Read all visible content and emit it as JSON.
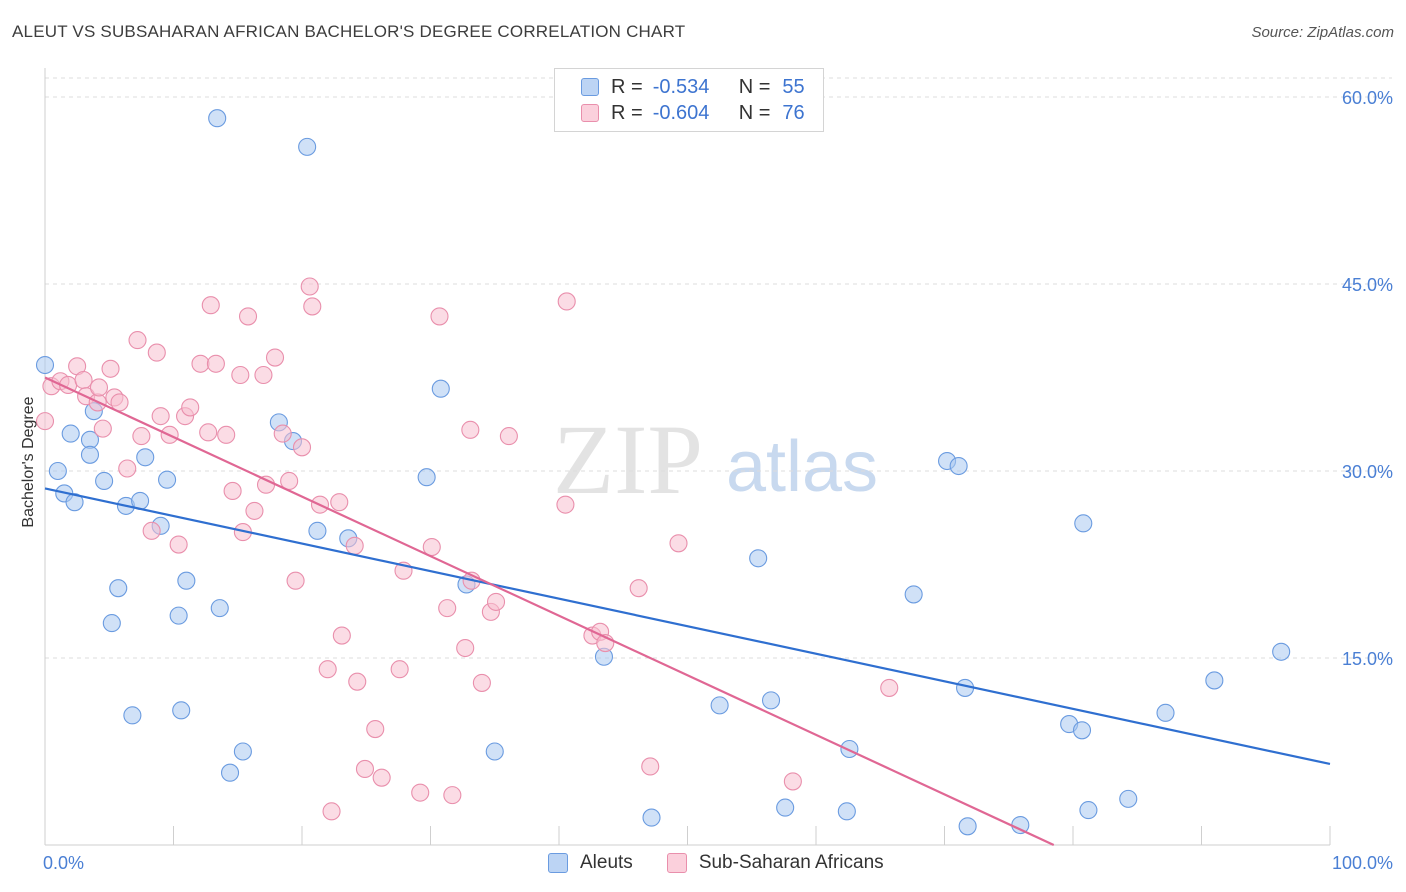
{
  "header": {
    "title": "ALEUT VS SUBSAHARAN AFRICAN BACHELOR'S DEGREE CORRELATION CHART",
    "source": "Source: ZipAtlas.com"
  },
  "legend": {
    "r_label": "R =",
    "n_label": "N =",
    "series": [
      {
        "r": "-0.534",
        "n": "55"
      },
      {
        "r": "-0.604",
        "n": "76"
      }
    ]
  },
  "watermark": {
    "zip": "ZIP",
    "atlas": "atlas"
  },
  "chart_data": {
    "type": "scatter",
    "title": "ALEUT VS SUBSAHARAN AFRICAN BACHELOR'S DEGREE CORRELATION CHART",
    "xlabel": "",
    "ylabel": "Bachelor's Degree",
    "xlim": [
      0,
      100
    ],
    "ylim": [
      0,
      63
    ],
    "x_tick_labels": [
      "0.0%",
      "100.0%"
    ],
    "y_ticks": [
      15,
      30,
      45,
      60
    ],
    "y_tick_labels": [
      "15.0%",
      "30.0%",
      "45.0%",
      "60.0%"
    ],
    "grid": "horizontal dashed",
    "legend_position": "top-center",
    "series": [
      {
        "name": "Aleuts",
        "color": "#a9c8f0",
        "stroke": "#6a9be0",
        "line_color": "#2f6fd0",
        "trend": {
          "x": [
            0,
            100
          ],
          "y": [
            28.6,
            6.5
          ]
        },
        "points": [
          [
            0,
            38.5
          ],
          [
            1,
            30
          ],
          [
            1.5,
            28.2
          ],
          [
            2,
            33
          ],
          [
            2.3,
            27.5
          ],
          [
            3.5,
            32.5
          ],
          [
            3.5,
            31.3
          ],
          [
            3.8,
            34.8
          ],
          [
            4.6,
            29.2
          ],
          [
            5.2,
            17.8
          ],
          [
            5.7,
            20.6
          ],
          [
            6.3,
            27.2
          ],
          [
            6.8,
            10.4
          ],
          [
            7.4,
            27.6
          ],
          [
            7.8,
            31.1
          ],
          [
            9,
            25.6
          ],
          [
            9.5,
            29.3
          ],
          [
            10.4,
            18.4
          ],
          [
            10.6,
            10.8
          ],
          [
            11,
            21.2
          ],
          [
            13.4,
            58.3
          ],
          [
            13.6,
            19
          ],
          [
            14.4,
            5.8
          ],
          [
            15.4,
            7.5
          ],
          [
            18.2,
            33.9
          ],
          [
            19.3,
            32.4
          ],
          [
            20.4,
            56
          ],
          [
            21.2,
            25.2
          ],
          [
            23.6,
            24.6
          ],
          [
            29.7,
            29.5
          ],
          [
            30.8,
            36.6
          ],
          [
            32.8,
            20.9
          ],
          [
            35,
            7.5
          ],
          [
            43.5,
            15.1
          ],
          [
            47.2,
            2.2
          ],
          [
            52.5,
            11.2
          ],
          [
            55.5,
            23
          ],
          [
            56.5,
            11.6
          ],
          [
            57.6,
            3
          ],
          [
            62.4,
            2.7
          ],
          [
            62.6,
            7.7
          ],
          [
            67.6,
            20.1
          ],
          [
            70.2,
            30.8
          ],
          [
            71.1,
            30.4
          ],
          [
            71.6,
            12.6
          ],
          [
            71.8,
            1.5
          ],
          [
            75.9,
            1.6
          ],
          [
            79.7,
            9.7
          ],
          [
            80.7,
            9.2
          ],
          [
            80.8,
            25.8
          ],
          [
            81.2,
            2.8
          ],
          [
            84.3,
            3.7
          ],
          [
            87.2,
            10.6
          ],
          [
            91,
            13.2
          ],
          [
            96.2,
            15.5
          ]
        ]
      },
      {
        "name": "Sub-Saharan Africans",
        "color": "#f7bfd0",
        "stroke": "#e98fac",
        "line_color": "#e06794",
        "trend": {
          "x": [
            0,
            78.5
          ],
          "y": [
            37.5,
            0
          ]
        },
        "points": [
          [
            0,
            34
          ],
          [
            0.5,
            36.8
          ],
          [
            1.2,
            37.2
          ],
          [
            1.8,
            36.9
          ],
          [
            2.5,
            38.4
          ],
          [
            3,
            37.3
          ],
          [
            3.2,
            36
          ],
          [
            4.1,
            35.5
          ],
          [
            4.2,
            36.7
          ],
          [
            4.5,
            33.4
          ],
          [
            5.1,
            38.2
          ],
          [
            5.4,
            35.9
          ],
          [
            5.8,
            35.5
          ],
          [
            6.4,
            30.2
          ],
          [
            7.2,
            40.5
          ],
          [
            7.5,
            32.8
          ],
          [
            8.3,
            25.2
          ],
          [
            8.7,
            39.5
          ],
          [
            9,
            34.4
          ],
          [
            9.7,
            32.9
          ],
          [
            10.4,
            24.1
          ],
          [
            10.9,
            34.4
          ],
          [
            11.3,
            35.1
          ],
          [
            12.1,
            38.6
          ],
          [
            12.7,
            33.1
          ],
          [
            12.9,
            43.3
          ],
          [
            13.3,
            38.6
          ],
          [
            14.1,
            32.9
          ],
          [
            14.6,
            28.4
          ],
          [
            15.2,
            37.7
          ],
          [
            15.4,
            25.1
          ],
          [
            15.8,
            42.4
          ],
          [
            16.3,
            26.8
          ],
          [
            17,
            37.7
          ],
          [
            17.2,
            28.9
          ],
          [
            17.9,
            39.1
          ],
          [
            18.5,
            33
          ],
          [
            19,
            29.2
          ],
          [
            19.5,
            21.2
          ],
          [
            20,
            31.9
          ],
          [
            20.6,
            44.8
          ],
          [
            20.8,
            43.2
          ],
          [
            21.4,
            27.3
          ],
          [
            22,
            14.1
          ],
          [
            22.3,
            2.7
          ],
          [
            22.9,
            27.5
          ],
          [
            23.1,
            16.8
          ],
          [
            24.1,
            24
          ],
          [
            24.3,
            13.1
          ],
          [
            24.9,
            6.1
          ],
          [
            25.7,
            9.3
          ],
          [
            26.2,
            5.4
          ],
          [
            27.6,
            14.1
          ],
          [
            27.9,
            22
          ],
          [
            29.2,
            4.2
          ],
          [
            30.1,
            23.9
          ],
          [
            30.7,
            42.4
          ],
          [
            31.3,
            19
          ],
          [
            31.7,
            4
          ],
          [
            32.7,
            15.8
          ],
          [
            33.1,
            33.3
          ],
          [
            33.2,
            21.2
          ],
          [
            34,
            13
          ],
          [
            34.7,
            18.7
          ],
          [
            35.1,
            19.5
          ],
          [
            36.1,
            32.8
          ],
          [
            40.5,
            27.3
          ],
          [
            40.6,
            43.6
          ],
          [
            42.6,
            16.8
          ],
          [
            43.2,
            17.1
          ],
          [
            43.6,
            16.2
          ],
          [
            46.2,
            20.6
          ],
          [
            47.1,
            6.3
          ],
          [
            49.3,
            24.2
          ],
          [
            58.2,
            5.1
          ],
          [
            65.7,
            12.6
          ]
        ]
      }
    ]
  }
}
